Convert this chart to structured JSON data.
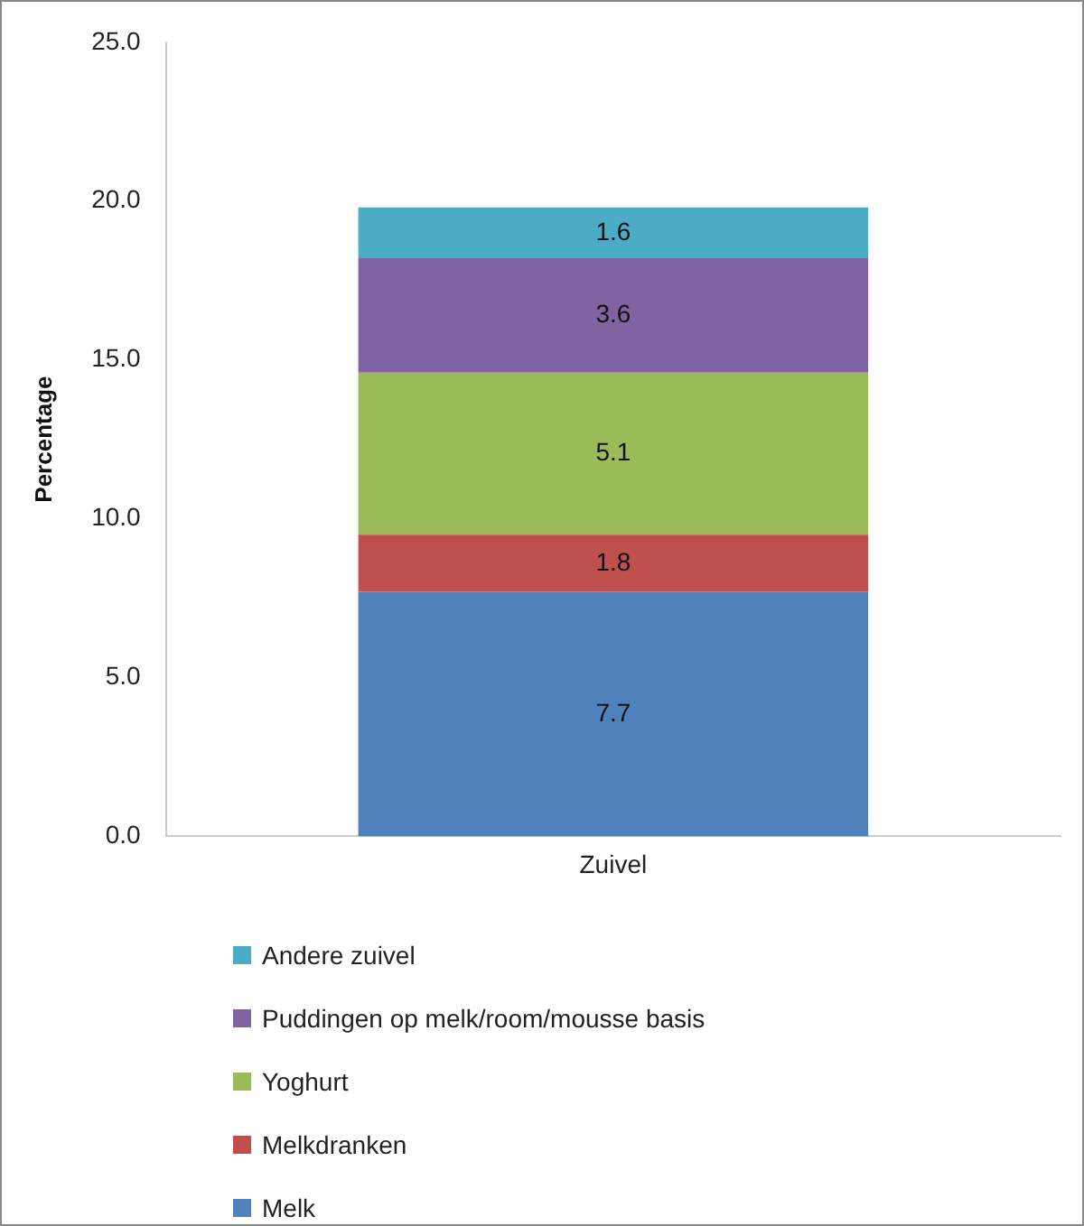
{
  "chart_data": {
    "type": "bar",
    "stacked": true,
    "categories": [
      "Zuivel"
    ],
    "ylabel": "Percentage",
    "series": [
      {
        "name": "Melk",
        "color": "#4f81bd",
        "values": [
          7.7
        ]
      },
      {
        "name": "Melkdranken",
        "color": "#c0504d",
        "values": [
          1.8
        ]
      },
      {
        "name": "Yoghurt",
        "color": "#9bbb59",
        "values": [
          5.1
        ]
      },
      {
        "name": "Puddingen op melk/room/mousse basis",
        "color": "#8064a2",
        "values": [
          3.6
        ]
      },
      {
        "name": "Andere zuivel",
        "color": "#4bacc6",
        "values": [
          1.6
        ]
      }
    ],
    "ylim": [
      0,
      25
    ],
    "yticks": [
      {
        "value": 0,
        "label": "0.0"
      },
      {
        "value": 5,
        "label": "5.0"
      },
      {
        "value": 10,
        "label": "10.0"
      },
      {
        "value": 15,
        "label": "15.0"
      },
      {
        "value": 20,
        "label": "20.0"
      },
      {
        "value": 25,
        "label": "25.0"
      }
    ],
    "grid": false,
    "legend": "bottom",
    "data_labels": true
  }
}
